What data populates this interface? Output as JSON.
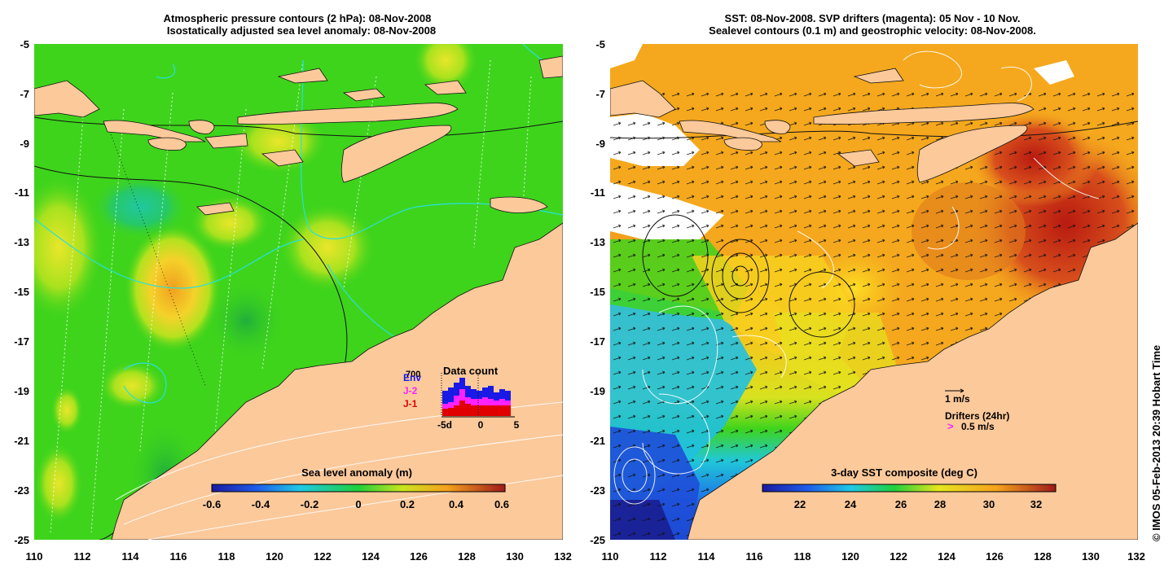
{
  "left_panel": {
    "title_line1": "Atmospheric pressure contours (2 hPa): 08-Nov-2008",
    "title_line2": "Isostatically adjusted sea level anomaly: 08-Nov-2008",
    "colorbar_label": "Sea level anomaly (m)",
    "colorbar_ticks": [
      "-0.6",
      "-0.4",
      "-0.2",
      "0",
      "0.2",
      "0.4",
      "0.6"
    ],
    "inset": {
      "title": "Data count",
      "max_label": "700",
      "legend": [
        "Env",
        "J-2",
        "J-1"
      ],
      "x_ticks": [
        "-5d",
        "0",
        "5"
      ],
      "series_colors": {
        "Env": "#1a1ae6",
        "J-2": "#ff22ff",
        "J-1": "#e00000"
      }
    }
  },
  "right_panel": {
    "title_line1": "SST: 08-Nov-2008. SVP drifters (magenta): 05 Nov - 10 Nov.",
    "title_line2": "Sealevel contours (0.1 m) and geostrophic velocity: 08-Nov-2008.",
    "colorbar_label": "3-day SST composite (deg C)",
    "colorbar_ticks": [
      "22",
      "24",
      "26",
      "28",
      "30",
      "32"
    ],
    "velocity_scale_label": "1 m/s",
    "drifters_label": "Drifters (24hr)",
    "drifters_scale_label": "0.5 m/s"
  },
  "axes": {
    "y_ticks": [
      "-5",
      "-7",
      "-9",
      "-11",
      "-13",
      "-15",
      "-17",
      "-19",
      "-21",
      "-23",
      "-25"
    ],
    "x_ticks": [
      "110",
      "112",
      "114",
      "116",
      "118",
      "120",
      "122",
      "124",
      "126",
      "128",
      "130",
      "132"
    ]
  },
  "copyright": "© IMOS 05-Feb-2013 20:39 Hobart Time",
  "colors": {
    "land": "#fcc99b",
    "sla_background": "#3ed41c",
    "sst_background": "#f5a81d"
  }
}
